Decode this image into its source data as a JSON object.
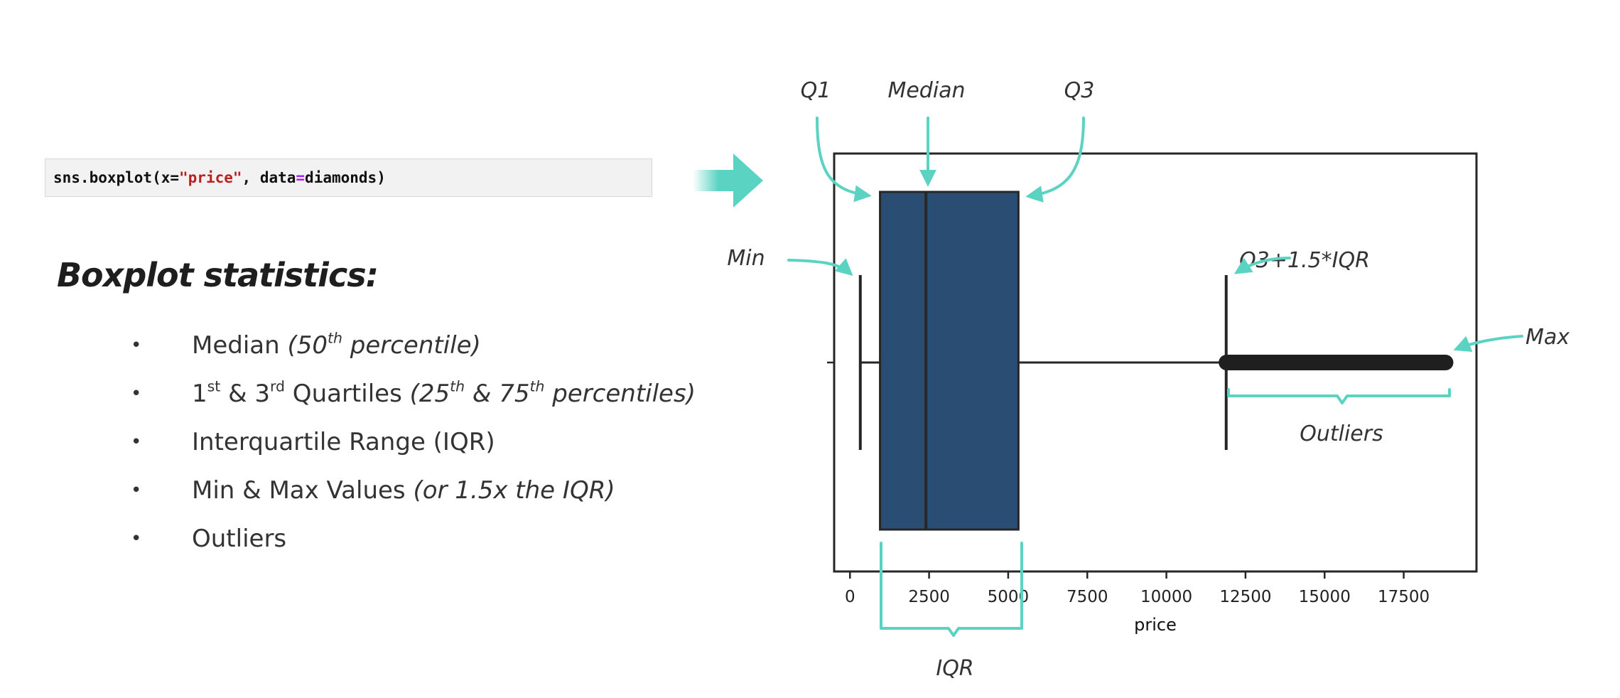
{
  "code": {
    "prefix": "sns.boxplot(x=",
    "string_arg": "\"price\"",
    "middle": ", data",
    "equals": "=",
    "suffix": "diamonds)"
  },
  "stats": {
    "title": "Boxplot statistics:",
    "items": [
      {
        "bullet": "•",
        "parts": [
          {
            "text": "Median ",
            "style": "normal"
          },
          {
            "text": "(50",
            "style": "italic"
          },
          {
            "text": "th",
            "style": "italic-sup"
          },
          {
            "text": " percentile)",
            "style": "italic"
          }
        ]
      },
      {
        "bullet": "•",
        "parts": [
          {
            "text": "1",
            "style": "normal"
          },
          {
            "text": "st",
            "style": "sup"
          },
          {
            "text": " & 3",
            "style": "normal"
          },
          {
            "text": "rd",
            "style": "sup"
          },
          {
            "text": " Quartiles ",
            "style": "normal"
          },
          {
            "text": "(25",
            "style": "italic"
          },
          {
            "text": "th",
            "style": "italic-sup"
          },
          {
            "text": " & 75",
            "style": "italic"
          },
          {
            "text": "th",
            "style": "italic-sup"
          },
          {
            "text": " percentiles)",
            "style": "italic"
          }
        ]
      },
      {
        "bullet": "•",
        "parts": [
          {
            "text": "Interquartile Range (IQR)",
            "style": "normal"
          }
        ]
      },
      {
        "bullet": "•",
        "parts": [
          {
            "text": "Min & Max Values ",
            "style": "normal"
          },
          {
            "text": "(or 1.5x the IQR)",
            "style": "italic"
          }
        ]
      },
      {
        "bullet": "•",
        "parts": [
          {
            "text": "Outliers",
            "style": "normal"
          }
        ]
      }
    ]
  },
  "annotations": {
    "q1": "Q1",
    "median": "Median",
    "q3": "Q3",
    "min": "Min",
    "upper_fence": "Q3+1.5*IQR",
    "max": "Max",
    "outliers": "Outliers",
    "iqr": "IQR"
  },
  "colors": {
    "box_fill": "#2a4e73",
    "box_edge": "#262626",
    "annotation": "#5bd3c2",
    "arrow": "#5bd3c2"
  },
  "chart_data": {
    "type": "box",
    "orientation": "horizontal",
    "xlabel": "price",
    "ylabel": "",
    "xlim": [
      -500,
      19800
    ],
    "xticks": [
      0,
      2500,
      5000,
      7500,
      10000,
      12500,
      15000,
      17500
    ],
    "xtick_labels": [
      "0",
      "2500",
      "5000",
      "7500",
      "10000",
      "12500",
      "15000",
      "17500"
    ],
    "stats": {
      "whislo": 326,
      "q1": 950,
      "med": 2401,
      "q3": 5324,
      "whishi": 11890,
      "fliers_min": 11900,
      "fliers_max": 18823
    }
  }
}
